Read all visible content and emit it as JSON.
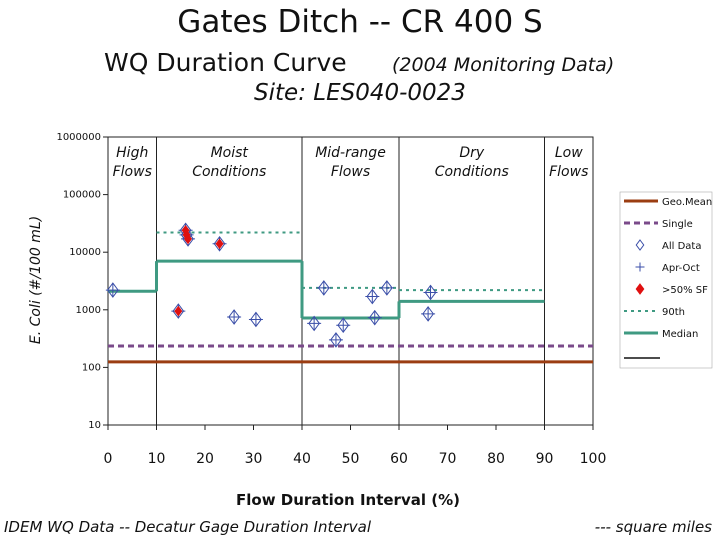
{
  "title_line1": "Gates Ditch -- CR 400 S",
  "title_line2": "WQ Duration Curve",
  "title_line2_note": "(2004 Monitoring Data)",
  "title_line3": "Site:  LES040-0023",
  "footer_left": "IDEM WQ Data -- Decatur Gage Duration Interval",
  "footer_right": "--- square miles",
  "colors": {
    "geomean": "#9b3d12",
    "single": "#7a4a8a",
    "all_data": "#3a4ea8",
    "exceed": "#e01010",
    "p90": "#3f9a82",
    "median": "#3f9a82"
  },
  "chart_data": {
    "type": "scatter",
    "title": "WQ Duration Curve",
    "xlabel": "Flow Duration Interval (%)",
    "ylabel": "E. Coli (#/100 mL)",
    "xlim": [
      0,
      100
    ],
    "ylim": [
      10,
      1000000
    ],
    "y_scale": "log",
    "x_ticks": [
      "0",
      "10",
      "20",
      "30",
      "40",
      "50",
      "60",
      "70",
      "80",
      "90",
      "100"
    ],
    "y_ticks": [
      "1000000",
      "100000",
      "10000",
      "1000",
      "100",
      "10"
    ],
    "regions": [
      {
        "label": [
          "High",
          "Flows"
        ],
        "x": [
          0,
          10
        ]
      },
      {
        "label": [
          "Moist",
          "Conditions"
        ],
        "x": [
          10,
          40
        ]
      },
      {
        "label": [
          "Mid-range",
          "Flows"
        ],
        "x": [
          40,
          60
        ]
      },
      {
        "label": [
          "Dry",
          "Conditions"
        ],
        "x": [
          60,
          90
        ]
      },
      {
        "label": [
          "Low",
          "Flows"
        ],
        "x": [
          90,
          100
        ]
      }
    ],
    "legend_position": "right",
    "legend": [
      "Geo.Mean",
      "Single",
      "All Data",
      "Apr-Oct",
      ">50% SF",
      "90th",
      "Median"
    ],
    "series": [
      {
        "name": "Geo.Mean",
        "style": "line",
        "segments": [
          {
            "x": [
              0,
              100
            ],
            "y": 125
          }
        ]
      },
      {
        "name": "Single",
        "style": "dashed",
        "segments": [
          {
            "x": [
              0,
              100
            ],
            "y": 235
          }
        ]
      },
      {
        "name": "90th",
        "style": "dotted",
        "segments": [
          {
            "x": [
              10,
              40
            ],
            "y": 22000
          },
          {
            "x": [
              40,
              60
            ],
            "y": 2400
          },
          {
            "x": [
              60,
              90
            ],
            "y": 2200
          }
        ]
      },
      {
        "name": "Median",
        "style": "line",
        "segments": [
          {
            "x": [
              0,
              10
            ],
            "y": 2100
          },
          {
            "x": [
              10,
              40
            ],
            "y": 7000
          },
          {
            "x": [
              40,
              60
            ],
            "y": 720
          },
          {
            "x": [
              60,
              90
            ],
            "y": 1400
          }
        ]
      },
      {
        "name": "All Data",
        "style": "points",
        "points": [
          [
            1,
            2200
          ],
          [
            14.5,
            950
          ],
          [
            16,
            24000
          ],
          [
            16.2,
            20000
          ],
          [
            16.5,
            17000
          ],
          [
            23,
            14000
          ],
          [
            26,
            750
          ],
          [
            30.5,
            680
          ],
          [
            42.5,
            580
          ],
          [
            44.5,
            2400
          ],
          [
            47,
            300
          ],
          [
            48.5,
            540
          ],
          [
            54.5,
            1700
          ],
          [
            55,
            730
          ],
          [
            57.5,
            2400
          ],
          [
            66.5,
            2000
          ],
          [
            66,
            850
          ]
        ]
      },
      {
        "name": ">50% SF",
        "style": "points",
        "points": [
          [
            14.5,
            950
          ],
          [
            16,
            24000
          ],
          [
            16.2,
            20000
          ],
          [
            16.5,
            17000
          ],
          [
            23,
            14000
          ]
        ]
      }
    ]
  }
}
